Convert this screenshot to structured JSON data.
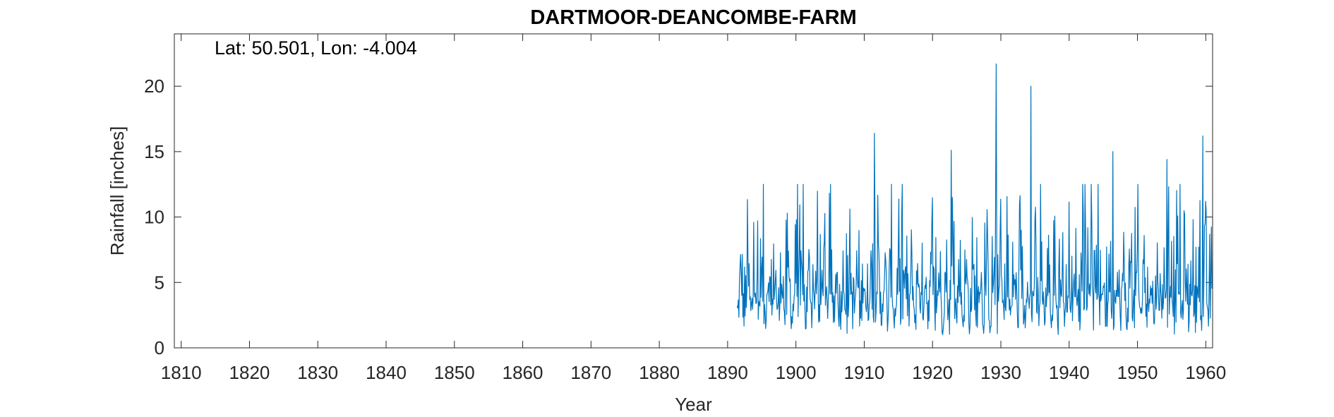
{
  "chart_data": {
    "type": "line",
    "title": "DARTMOOR-DEANCOMBE-FARM",
    "annotation": "Lat: 50.501, Lon: -4.004",
    "xlabel": "Year",
    "ylabel": "Rainfall [inches]",
    "xlim": [
      1809,
      1961
    ],
    "ylim": [
      0,
      24
    ],
    "x_ticks": [
      1810,
      1820,
      1830,
      1840,
      1850,
      1860,
      1870,
      1880,
      1890,
      1900,
      1910,
      1920,
      1930,
      1940,
      1950,
      1960
    ],
    "y_ticks": [
      0,
      5,
      10,
      15,
      20
    ],
    "grid": false,
    "series": [
      {
        "color": "#0072BD",
        "x_start": 1891.4,
        "x_end": 1960.9,
        "sampling": "monthly",
        "values_min": 0,
        "values_max": 21.7,
        "notable_peaks": [
          {
            "x": 1911.5,
            "y": 16.4
          },
          {
            "x": 1922.7,
            "y": 15.1
          },
          {
            "x": 1929.3,
            "y": 21.7
          },
          {
            "x": 1934.4,
            "y": 20.0
          },
          {
            "x": 1946.4,
            "y": 15.0
          },
          {
            "x": 1954.3,
            "y": 14.4
          },
          {
            "x": 1959.6,
            "y": 16.2
          }
        ]
      }
    ]
  }
}
